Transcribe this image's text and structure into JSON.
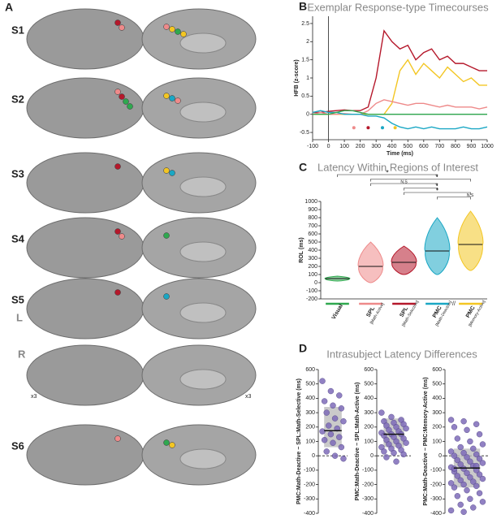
{
  "panel_labels": [
    "A",
    "B",
    "C",
    "D"
  ],
  "brain_panel": {
    "subjects": [
      "S1",
      "S2",
      "S3",
      "S4",
      "S5",
      "S6"
    ],
    "hemispheres": [
      "L",
      "R"
    ],
    "annotations": [
      "x3",
      "x3"
    ]
  },
  "chart_data": [
    {
      "type": "line",
      "title": "Exemplar Response-type Timecourses",
      "xlabel": "Time (ms)",
      "ylabel": "HFB (z-score)",
      "x": [
        -100,
        -50,
        0,
        50,
        100,
        150,
        200,
        250,
        300,
        350,
        400,
        450,
        500,
        550,
        600,
        650,
        700,
        750,
        800,
        850,
        900,
        950,
        1000
      ],
      "series": [
        {
          "color": "#b5182b",
          "values": [
            0.05,
            0.05,
            0.08,
            0.1,
            0.12,
            0.1,
            0.1,
            0.2,
            1.0,
            2.3,
            2.0,
            1.8,
            1.9,
            1.5,
            1.7,
            1.8,
            1.5,
            1.6,
            1.4,
            1.4,
            1.3,
            1.2,
            1.2
          ]
        },
        {
          "color": "#f3c623",
          "values": [
            0,
            0,
            0,
            0,
            0,
            0,
            0,
            0,
            0,
            0,
            0.3,
            1.2,
            1.5,
            1.1,
            1.4,
            1.2,
            1.0,
            1.3,
            1.1,
            0.9,
            1.0,
            0.8,
            0.8
          ]
        },
        {
          "color": "#ee8a8a",
          "values": [
            0,
            0.05,
            0,
            0,
            0.02,
            0,
            0,
            0.1,
            0.3,
            0.4,
            0.35,
            0.3,
            0.25,
            0.3,
            0.3,
            0.25,
            0.2,
            0.25,
            0.2,
            0.2,
            0.2,
            0.15,
            0.2
          ]
        },
        {
          "color": "#1aa7c4",
          "values": [
            0.05,
            0.1,
            0.05,
            0.05,
            0,
            0,
            0,
            -0.05,
            -0.05,
            -0.1,
            -0.25,
            -0.35,
            -0.4,
            -0.35,
            -0.4,
            -0.35,
            -0.4,
            -0.4,
            -0.4,
            -0.35,
            -0.4,
            -0.4,
            -0.35
          ]
        },
        {
          "color": "#2fa84f",
          "values": [
            0,
            0,
            0,
            0.05,
            0.1,
            0.1,
            0.05,
            0,
            0,
            0,
            0,
            0,
            0,
            0,
            0,
            0,
            0,
            0,
            0,
            0,
            0,
            0,
            0
          ]
        }
      ],
      "onsets": {
        "x": [
          160,
          250,
          340,
          420
        ],
        "y": [
          -0.37,
          -0.37,
          -0.37,
          -0.37
        ],
        "colors": [
          "#ee8a8a",
          "#b5182b",
          "#1aa7c4",
          "#f3c623"
        ]
      },
      "xlim": [
        -100,
        1000
      ],
      "xticks": [
        -100,
        0,
        100,
        200,
        300,
        400,
        500,
        600,
        700,
        800,
        900,
        1000
      ],
      "ylim": [
        -0.7,
        2.7
      ],
      "yticks": [
        -0.5,
        0,
        0.5,
        1,
        1.5,
        2,
        2.5
      ]
    },
    {
      "type": "violin",
      "title": "Latency Within Regions of Interest",
      "ylabel": "ROL (ms)",
      "categories": [
        "Visual",
        "SPL",
        "SPL",
        "PMC",
        "PMC"
      ],
      "subcategories": [
        null,
        "[Math-Active]",
        "[Math-Selective]",
        "[Math-Deactive]",
        "[Memory-Active]"
      ],
      "colors": [
        "#2fa84f",
        "#ee8a8a",
        "#b5182b",
        "#1aa7c4",
        "#f3c623"
      ],
      "medians": [
        50,
        200,
        250,
        390,
        470
      ],
      "ranges": [
        [
          20,
          80
        ],
        [
          0,
          500
        ],
        [
          100,
          450
        ],
        [
          100,
          800
        ],
        [
          150,
          880
        ]
      ],
      "comparisons": [
        {
          "pair": [
            0,
            3
          ],
          "label": "*"
        },
        {
          "pair": [
            1,
            4
          ],
          "label": "*"
        },
        {
          "pair": [
            1,
            3
          ],
          "label": "N.S"
        },
        {
          "pair": [
            2,
            3
          ],
          "label": "*"
        },
        {
          "pair": [
            2,
            4
          ],
          "label": "*"
        },
        {
          "pair": [
            3,
            4
          ],
          "label": "N.S"
        }
      ],
      "axis_break": "//",
      "ylim": [
        -200,
        1000
      ],
      "yticks": [
        -200,
        -100,
        0,
        100,
        200,
        300,
        400,
        500,
        600,
        700,
        800,
        900,
        1000
      ]
    },
    {
      "type": "strip",
      "title": "Intrasubject Latency Differences",
      "panels": [
        {
          "ylabel": "PMC:Math-Deactive − SPL:Math-Selective (ms)",
          "color": "#7e6bb8",
          "values": [
            520,
            450,
            420,
            380,
            350,
            330,
            300,
            260,
            240,
            210,
            190,
            170,
            150,
            130,
            110,
            90,
            60,
            30,
            0,
            -20
          ],
          "mean": 175,
          "box": [
            60,
            340
          ]
        },
        {
          "ylabel": "PMC:Math-Deactive − SPL:Math-Active (ms)",
          "color": "#7e6bb8",
          "values": [
            300,
            270,
            250,
            240,
            230,
            220,
            210,
            200,
            190,
            180,
            170,
            160,
            150,
            150,
            140,
            130,
            120,
            110,
            100,
            90,
            80,
            70,
            60,
            50,
            40,
            30,
            20,
            10,
            -10,
            -40
          ],
          "mean": 150,
          "box": [
            60,
            260
          ]
        },
        {
          "ylabel": "PMC:Math-Deactive − PMC:Memory-Active (ms)",
          "color": "#7e6bb8",
          "values": [
            250,
            240,
            220,
            200,
            180,
            150,
            120,
            100,
            80,
            60,
            50,
            30,
            20,
            10,
            0,
            -10,
            -20,
            -30,
            -40,
            -50,
            -60,
            -70,
            -80,
            -90,
            -100,
            -110,
            -120,
            -130,
            -140,
            -150,
            -160,
            -170,
            -180,
            -190,
            -200,
            -210,
            -220,
            -240,
            -260,
            -280,
            -300,
            -320,
            -340,
            -360,
            -380,
            -390,
            -70,
            -90
          ],
          "mean": -85,
          "box": [
            -220,
            50
          ]
        }
      ],
      "ylim": [
        -400,
        600
      ],
      "yticks": [
        -400,
        -300,
        -200,
        -100,
        0,
        100,
        200,
        300,
        400,
        500,
        600
      ]
    }
  ]
}
